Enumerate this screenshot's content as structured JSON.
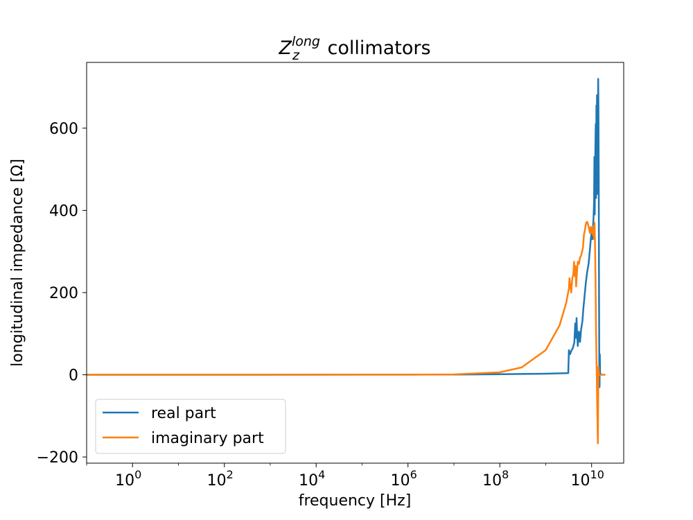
{
  "chart_data": {
    "type": "line",
    "title": {
      "symbol": "Z",
      "subscript": "z",
      "superscript": "long",
      "text": "collimators"
    },
    "xlabel": "frequency [Hz]",
    "ylabel": "longitudinal impedance [Ω]",
    "xscale": "log",
    "xlim": [
      0.1,
      50000000000
    ],
    "ylim": [
      -215,
      760
    ],
    "x_ticks": [
      {
        "value": 1,
        "base": "10",
        "exp": "0"
      },
      {
        "value": 100,
        "base": "10",
        "exp": "2"
      },
      {
        "value": 10000,
        "base": "10",
        "exp": "4"
      },
      {
        "value": 1000000,
        "base": "10",
        "exp": "6"
      },
      {
        "value": 100000000,
        "base": "10",
        "exp": "8"
      },
      {
        "value": 10000000000,
        "base": "10",
        "exp": "10"
      }
    ],
    "y_ticks": [
      {
        "value": -200,
        "label": "−200"
      },
      {
        "value": 0,
        "label": "0"
      },
      {
        "value": 200,
        "label": "200"
      },
      {
        "value": 400,
        "label": "400"
      },
      {
        "value": 600,
        "label": "600"
      }
    ],
    "grid": false,
    "legend_position": "lower-left",
    "series": [
      {
        "name": "real part",
        "color": "#1f77b4",
        "points": [
          [
            0.1,
            0
          ],
          [
            1000000,
            0.3
          ],
          [
            10000000,
            0.6
          ],
          [
            100000000,
            1.3
          ],
          [
            1000000000,
            2.6
          ],
          [
            3100000000,
            4
          ],
          [
            3200000000,
            60
          ],
          [
            3400000000,
            50
          ],
          [
            3600000000,
            58
          ],
          [
            3900000000,
            65
          ],
          [
            4200000000,
            78
          ],
          [
            4400000000,
            125
          ],
          [
            4550000000,
            90
          ],
          [
            4700000000,
            138
          ],
          [
            4850000000,
            95
          ],
          [
            5000000000,
            70
          ],
          [
            5300000000,
            105
          ],
          [
            5600000000,
            80
          ],
          [
            5900000000,
            110
          ],
          [
            6300000000,
            130
          ],
          [
            6600000000,
            160
          ],
          [
            7000000000,
            190
          ],
          [
            7500000000,
            225
          ],
          [
            8000000000,
            250
          ],
          [
            8600000000,
            270
          ],
          [
            9100000000,
            300
          ],
          [
            9600000000,
            330
          ],
          [
            10000000000,
            345
          ],
          [
            10400000000,
            330
          ],
          [
            10700000000,
            360
          ],
          [
            11000000000,
            380
          ],
          [
            11300000000,
            420
          ],
          [
            11500000000,
            530
          ],
          [
            11700000000,
            390
          ],
          [
            11900000000,
            490
          ],
          [
            12100000000,
            560
          ],
          [
            12300000000,
            610
          ],
          [
            12500000000,
            430
          ],
          [
            12700000000,
            655
          ],
          [
            12900000000,
            520
          ],
          [
            13100000000,
            680
          ],
          [
            13300000000,
            440
          ],
          [
            13500000000,
            650
          ],
          [
            13700000000,
            590
          ],
          [
            13900000000,
            720
          ],
          [
            14100000000,
            650
          ],
          [
            14300000000,
            480
          ],
          [
            14500000000,
            200
          ],
          [
            14700000000,
            20
          ],
          [
            14900000000,
            -30
          ],
          [
            15100000000,
            50
          ],
          [
            15300000000,
            5
          ],
          [
            16000000000,
            0
          ]
        ]
      },
      {
        "name": "imaginary part",
        "color": "#ff7f0e",
        "points": [
          [
            0.1,
            0
          ],
          [
            1000000,
            0.3
          ],
          [
            10000000,
            1
          ],
          [
            100000000,
            6
          ],
          [
            300000000,
            18
          ],
          [
            1000000000,
            60
          ],
          [
            2000000000,
            120
          ],
          [
            2800000000,
            175
          ],
          [
            3200000000,
            210
          ],
          [
            3300000000,
            235
          ],
          [
            3450000000,
            215
          ],
          [
            3600000000,
            200
          ],
          [
            3800000000,
            235
          ],
          [
            4000000000,
            245
          ],
          [
            4150000000,
            275
          ],
          [
            4300000000,
            240
          ],
          [
            4450000000,
            265
          ],
          [
            4600000000,
            215
          ],
          [
            4800000000,
            250
          ],
          [
            5000000000,
            275
          ],
          [
            5300000000,
            270
          ],
          [
            5600000000,
            285
          ],
          [
            5900000000,
            290
          ],
          [
            6200000000,
            300
          ],
          [
            6500000000,
            310
          ],
          [
            6800000000,
            340
          ],
          [
            7200000000,
            355
          ],
          [
            7600000000,
            370
          ],
          [
            8000000000,
            372
          ],
          [
            8400000000,
            365
          ],
          [
            8800000000,
            355
          ],
          [
            9200000000,
            345
          ],
          [
            9600000000,
            360
          ],
          [
            10000000000,
            345
          ],
          [
            10400000000,
            352
          ],
          [
            10700000000,
            340
          ],
          [
            11000000000,
            362
          ],
          [
            11300000000,
            330
          ],
          [
            11600000000,
            370
          ],
          [
            11900000000,
            310
          ],
          [
            12200000000,
            220
          ],
          [
            12500000000,
            100
          ],
          [
            12800000000,
            30
          ],
          [
            13100000000,
            -40
          ],
          [
            13400000000,
            -110
          ],
          [
            13700000000,
            -167
          ],
          [
            13900000000,
            -60
          ],
          [
            14100000000,
            20
          ],
          [
            14500000000,
            0
          ],
          [
            20000000000,
            0
          ]
        ]
      }
    ]
  }
}
